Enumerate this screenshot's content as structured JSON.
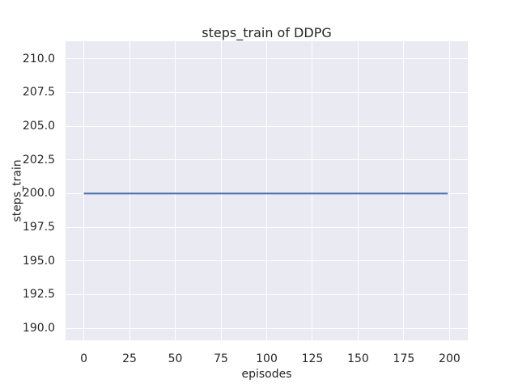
{
  "chart_data": {
    "type": "line",
    "title": "steps_train of DDPG",
    "xlabel": "episodes",
    "ylabel": "steps_train",
    "x_ticks": [
      "0",
      "25",
      "50",
      "75",
      "100",
      "125",
      "150",
      "175",
      "200"
    ],
    "y_ticks": [
      "190.0",
      "192.5",
      "195.0",
      "197.5",
      "200.0",
      "202.5",
      "205.0",
      "207.5",
      "210.0"
    ],
    "xlim": [
      -10,
      210
    ],
    "ylim": [
      189.1,
      211.3
    ],
    "grid": true,
    "legend": false,
    "series": [
      {
        "name": "steps_train",
        "color": "#4c72b0",
        "x": [
          0,
          199
        ],
        "y": [
          200,
          200
        ]
      }
    ],
    "colors": {
      "figure_background": "#ffffff",
      "plot_background": "#eaeaf2",
      "grid": "#ffffff",
      "text": "#262626"
    }
  }
}
